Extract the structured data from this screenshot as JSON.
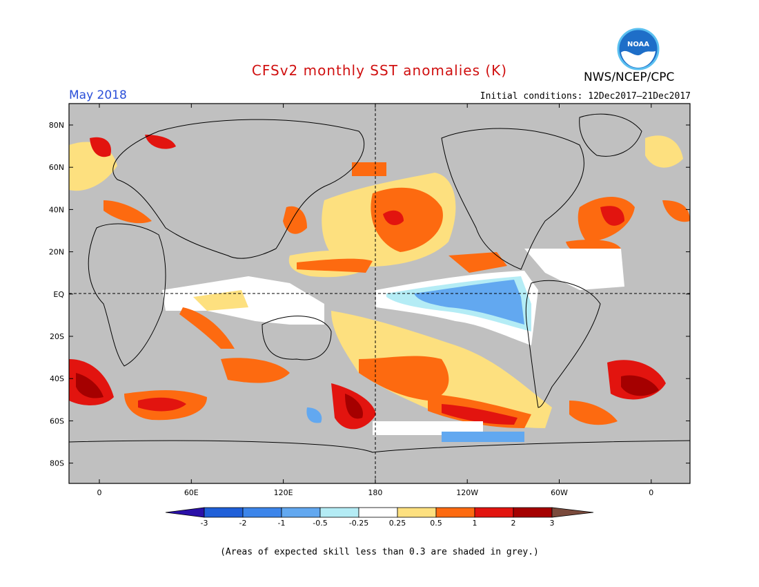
{
  "header": {
    "title": "CFSv2 monthly SST anomalies (K)",
    "month": "May 2018",
    "agency": "NWS/NCEP/CPC",
    "initial_conditions": "Initial conditions: 12Dec2017–21Dec2017",
    "logo_text": "NOAA"
  },
  "axes": {
    "lat_labels": [
      "80N",
      "60N",
      "40N",
      "20N",
      "EQ",
      "20S",
      "40S",
      "60S",
      "80S"
    ],
    "lon_labels": [
      "0",
      "60E",
      "120E",
      "180",
      "120W",
      "60W",
      "0"
    ]
  },
  "colorbar": {
    "labels": [
      "-3",
      "-2",
      "-1",
      "-0.5",
      "-0.25",
      "0.25",
      "0.5",
      "1",
      "2",
      "3"
    ],
    "colors": [
      "#2a10a8",
      "#1f5fd8",
      "#3c85ea",
      "#62a8f0",
      "#b4ecf5",
      "#ffffff",
      "#fde07f",
      "#fd6a10",
      "#e2140f",
      "#a50000",
      "#7a4a3c"
    ]
  },
  "colors": {
    "land": "#c0c0c0",
    "ocean_neutral": "#ffffff",
    "title": "#d01010",
    "month": "#2a4fd8"
  },
  "footnote": "(Areas of expected skill less than 0.3 are shaded in grey.)"
}
